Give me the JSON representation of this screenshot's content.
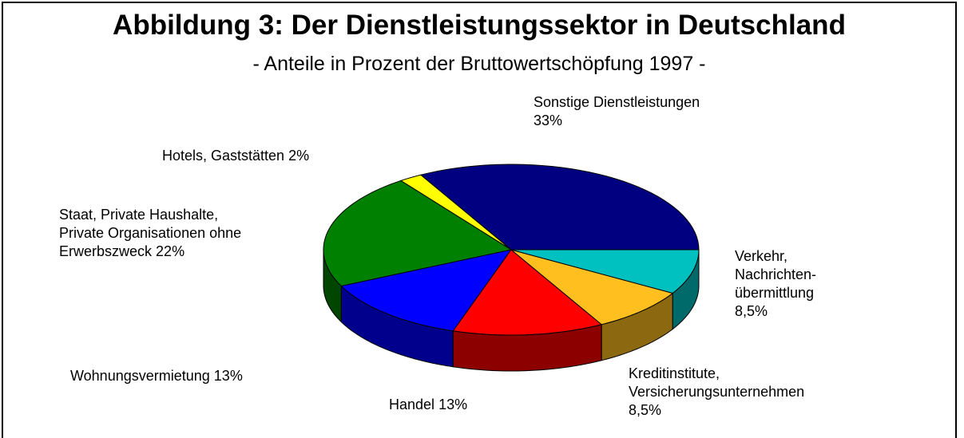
{
  "chart_data": {
    "type": "pie",
    "three_d": true,
    "title": "Abbildung 3: Der Dienstleistungssektor in Deutschland",
    "subtitle": "- Anteile in Prozent der Bruttowertschöpfung 1997 -",
    "categories": [
      "Sonstige Dienstleistungen",
      "Hotels, Gaststätten",
      "Staat, Private Haushalte, Private Organisationen ohne Erwerbszweck",
      "Wohnungsvermietung",
      "Handel",
      "Kreditinstitute, Versicherungsunternehmen",
      "Verkehr, Nachrichten-übermittlung"
    ],
    "values": [
      33,
      2,
      22,
      13,
      13,
      8.5,
      8.5
    ],
    "value_labels": [
      "33%",
      "2%",
      "22%",
      "13%",
      "13%",
      "8,5%",
      "8,5%"
    ],
    "colors": [
      "#000080",
      "#ffff00",
      "#008000",
      "#0000ff",
      "#ff0000",
      "#ffbf1f",
      "#00c0c0"
    ]
  }
}
